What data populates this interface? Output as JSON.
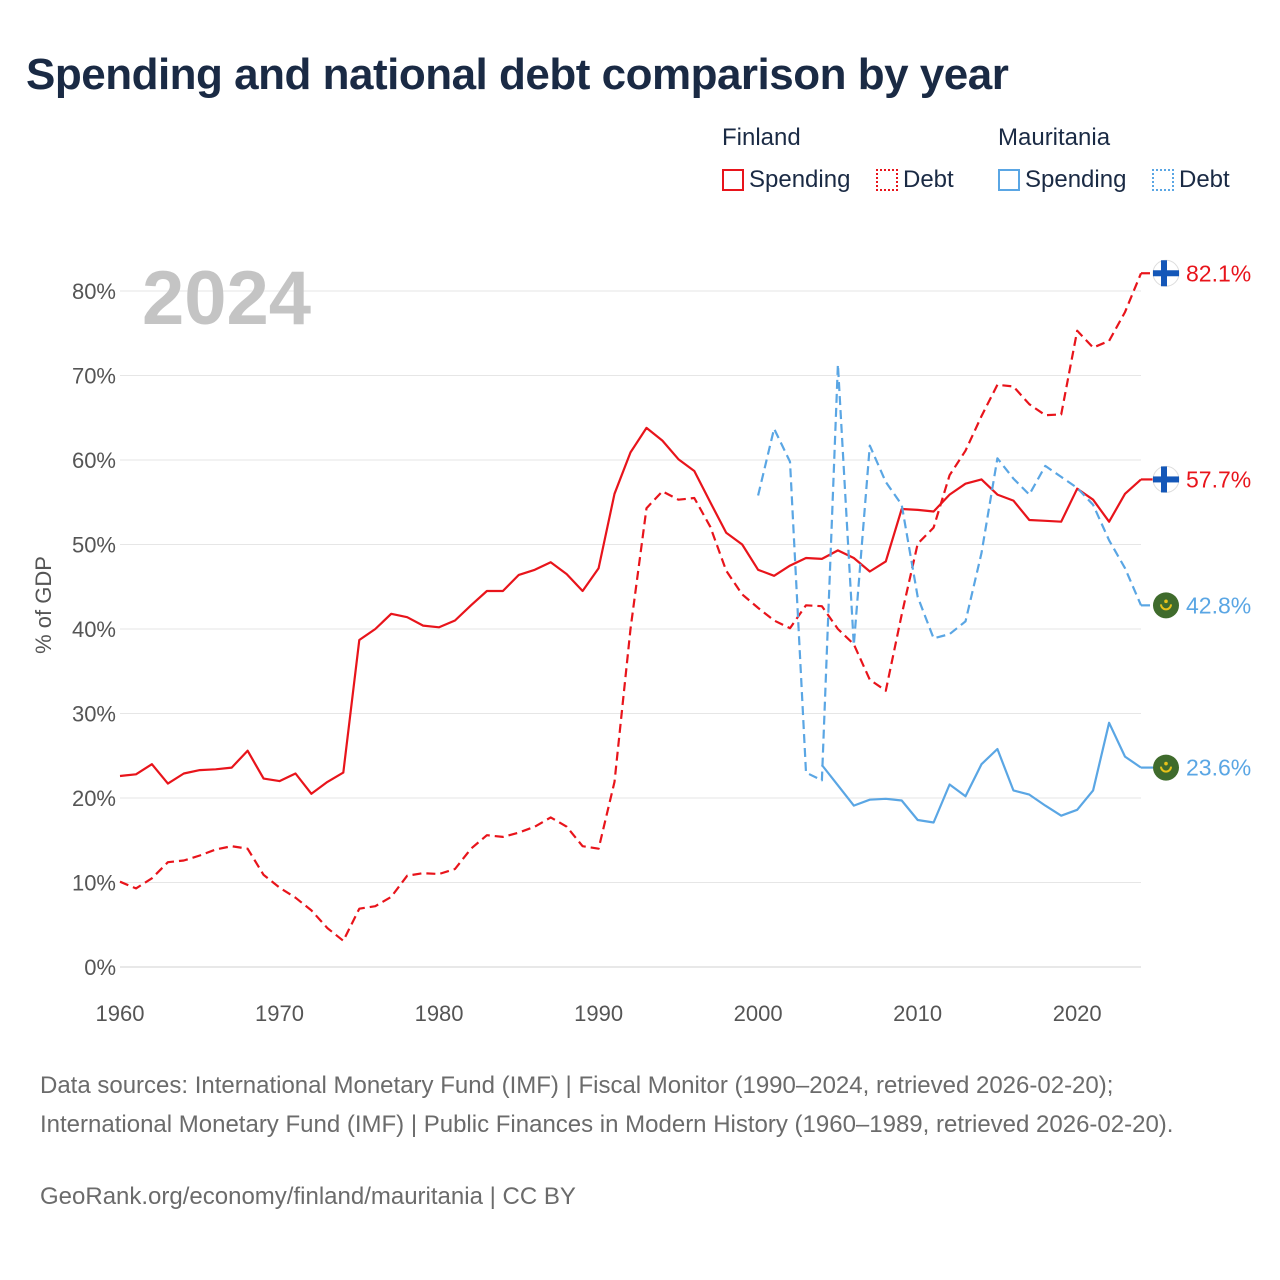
{
  "title": "Spending and national debt comparison by year",
  "legend": {
    "countries": [
      {
        "name": "Finland",
        "color": "#e8141b",
        "spending_label": "Spending",
        "debt_label": "Debt"
      },
      {
        "name": "Mauritania",
        "color": "#5aa6e4",
        "spending_label": "Spending",
        "debt_label": "Debt"
      }
    ]
  },
  "footer": {
    "sources": "Data sources: International Monetary Fund (IMF) | Fiscal Monitor (1990–2024, retrieved 2026-02-20); International Monetary Fund (IMF) | Public Finances in Modern History (1960–1989, retrieved 2026-02-20).",
    "url": "GeoRank.org/economy/finland/mauritania | CC BY"
  },
  "chart_data": {
    "type": "line",
    "title": "Spending and national debt comparison by year",
    "year_label": "2024",
    "ylabel": "% of GDP",
    "xlabel": "",
    "xlim": [
      1960,
      2024
    ],
    "ylim": [
      0,
      80
    ],
    "x_ticks": [
      1960,
      1970,
      1980,
      1990,
      2000,
      2010,
      2020
    ],
    "y_ticks": [
      0,
      10,
      20,
      30,
      40,
      50,
      60,
      70,
      80
    ],
    "y_tick_labels": [
      "0%",
      "10%",
      "20%",
      "30%",
      "40%",
      "50%",
      "60%",
      "70%",
      "80%"
    ],
    "grid": true,
    "series": [
      {
        "name": "Finland Spending",
        "country": "Finland",
        "color": "#e8141b",
        "dash": "solid",
        "flag": "finland",
        "end_label": "57.7%",
        "start_year": 1960,
        "values": [
          22.6,
          22.8,
          24.0,
          21.7,
          22.9,
          23.3,
          23.4,
          23.6,
          25.6,
          22.3,
          22.0,
          22.9,
          20.5,
          21.9,
          23.0,
          38.7,
          40.0,
          41.8,
          41.4,
          40.4,
          40.2,
          41.0,
          42.8,
          44.5,
          44.5,
          46.4,
          47.0,
          47.9,
          46.5,
          44.5,
          47.2,
          56.0,
          60.9,
          63.8,
          62.3,
          60.1,
          58.7,
          55.0,
          51.4,
          50.0,
          47.0,
          46.3,
          47.5,
          48.4,
          48.3,
          49.3,
          48.4,
          46.8,
          48.0,
          54.2,
          54.1,
          53.9,
          55.9,
          57.2,
          57.7,
          55.9,
          55.2,
          52.9,
          52.8,
          52.7,
          56.6,
          55.3,
          52.7,
          56.0,
          57.7
        ]
      },
      {
        "name": "Finland Debt",
        "country": "Finland",
        "color": "#e8141b",
        "dash": "dashed",
        "flag": "finland",
        "end_label": "82.1%",
        "start_year": 1960,
        "values": [
          10.1,
          9.3,
          10.5,
          12.4,
          12.6,
          13.2,
          13.9,
          14.3,
          14.0,
          10.9,
          9.4,
          8.2,
          6.7,
          4.6,
          3.1,
          6.9,
          7.2,
          8.3,
          10.8,
          11.1,
          11.0,
          11.6,
          14.0,
          15.6,
          15.4,
          15.9,
          16.6,
          17.7,
          16.6,
          14.3,
          14.0,
          21.9,
          40.0,
          54.3,
          56.3,
          55.3,
          55.5,
          52.1,
          46.9,
          44.1,
          42.5,
          41.0,
          40.1,
          42.8,
          42.7,
          40.0,
          38.2,
          34.0,
          32.7,
          41.7,
          50.1,
          52.0,
          58.2,
          61.1,
          65.2,
          68.9,
          68.7,
          66.6,
          65.3,
          65.4,
          75.3,
          73.3,
          74.1,
          77.5,
          82.1
        ]
      },
      {
        "name": "Mauritania Spending",
        "country": "Mauritania",
        "color": "#5aa6e4",
        "dash": "solid",
        "flag": "mauritania",
        "end_label": "23.6%",
        "start_year": 2004,
        "values": [
          23.9,
          21.5,
          19.1,
          19.8,
          19.9,
          19.7,
          17.4,
          17.1,
          21.6,
          20.2,
          24.0,
          25.8,
          20.9,
          20.4,
          19.1,
          17.9,
          18.6,
          20.9,
          28.9,
          24.9,
          23.6
        ]
      },
      {
        "name": "Mauritania Debt",
        "country": "Mauritania",
        "color": "#5aa6e4",
        "dash": "dashed",
        "flag": "mauritania",
        "end_label": "42.8%",
        "start_year": 2000,
        "values": [
          55.8,
          63.7,
          59.8,
          23.0,
          22.1,
          71.3,
          38.1,
          61.7,
          57.4,
          54.7,
          43.8,
          38.9,
          39.4,
          40.9,
          49.0,
          60.2,
          57.8,
          55.9,
          59.3,
          58.0,
          56.7,
          54.7,
          50.5,
          47.2,
          42.8
        ]
      }
    ]
  }
}
